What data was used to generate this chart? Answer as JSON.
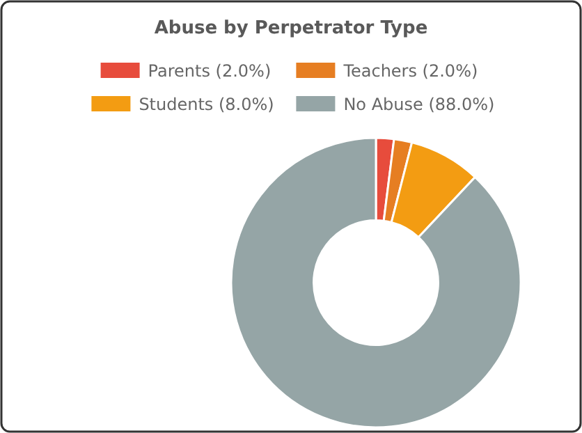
{
  "chart_data": {
    "type": "donut",
    "title": "Abuse by Perpetrator Type",
    "categories": [
      "Parents (2.0%)",
      "Teachers (2.0%)",
      "Students (8.0%)",
      "No Abuse (88.0%)"
    ],
    "values": [
      2,
      2,
      8,
      88
    ],
    "colors": [
      "#e74c3c",
      "#e67e22",
      "#f39c12",
      "#95a5a6"
    ],
    "legend": "top"
  }
}
